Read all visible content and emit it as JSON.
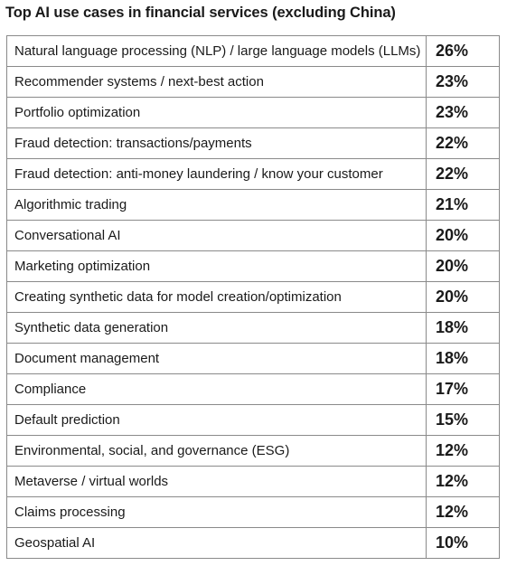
{
  "chart_data": {
    "type": "table",
    "title": "Top AI use cases in financial services (excluding China)",
    "rows": [
      {
        "label": "Natural language processing (NLP) / large language models (LLMs)",
        "value": "26%"
      },
      {
        "label": "Recommender systems / next-best action",
        "value": "23%"
      },
      {
        "label": "Portfolio optimization",
        "value": "23%"
      },
      {
        "label": "Fraud detection: transactions/payments",
        "value": "22%"
      },
      {
        "label": "Fraud detection: anti-money laundering / know your customer",
        "value": "22%"
      },
      {
        "label": "Algorithmic trading",
        "value": "21%"
      },
      {
        "label": "Conversational AI",
        "value": "20%"
      },
      {
        "label": "Marketing optimization",
        "value": "20%"
      },
      {
        "label": "Creating synthetic data for model creation/optimization",
        "value": "20%"
      },
      {
        "label": "Synthetic data generation",
        "value": "18%"
      },
      {
        "label": "Document management",
        "value": "18%"
      },
      {
        "label": "Compliance",
        "value": "17%"
      },
      {
        "label": "Default prediction",
        "value": "15%"
      },
      {
        "label": "Environmental, social, and governance (ESG)",
        "value": "12%"
      },
      {
        "label": "Metaverse / virtual worlds",
        "value": "12%"
      },
      {
        "label": "Claims processing",
        "value": "12%"
      },
      {
        "label": "Geospatial AI",
        "value": "10%"
      }
    ]
  }
}
